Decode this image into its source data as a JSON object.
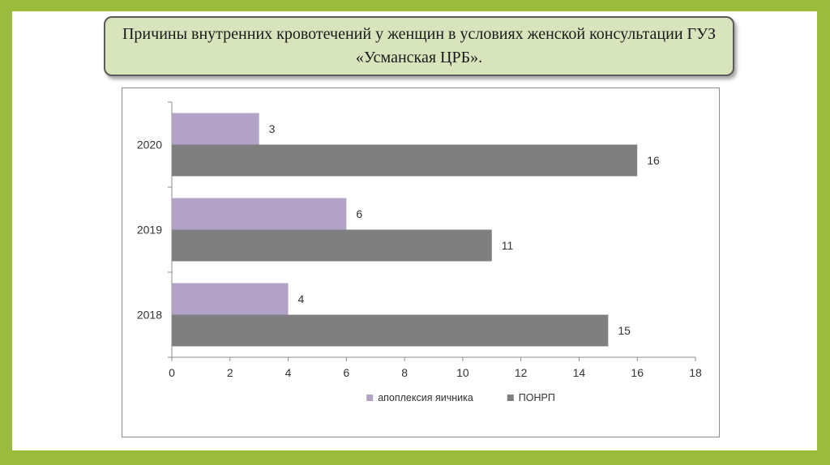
{
  "slide": {
    "title": "Причины внутренних кровотечений у женщин в условиях женской консультации ГУЗ «Усманская ЦРБ»."
  },
  "colors": {
    "frame": "#9bbb3c",
    "title_bg": "#d8e4bc",
    "series_1": "#b3a2c7",
    "series_2": "#7f7f7f"
  },
  "chart_data": {
    "type": "bar",
    "orientation": "horizontal",
    "categories": [
      "2020",
      "2019",
      "2018"
    ],
    "series": [
      {
        "name": "апоплексия яичника",
        "values": [
          3,
          6,
          4
        ],
        "color": "#b3a2c7"
      },
      {
        "name": "ПОНРП",
        "values": [
          16,
          11,
          15
        ],
        "color": "#7f7f7f"
      }
    ],
    "x_ticks": [
      "0",
      "2",
      "4",
      "6",
      "8",
      "10",
      "12",
      "14",
      "16",
      "18"
    ],
    "xlim": [
      0,
      18
    ],
    "title": "",
    "xlabel": "",
    "ylabel": "",
    "grid": false,
    "legend": "bottom",
    "data_labels": true
  }
}
